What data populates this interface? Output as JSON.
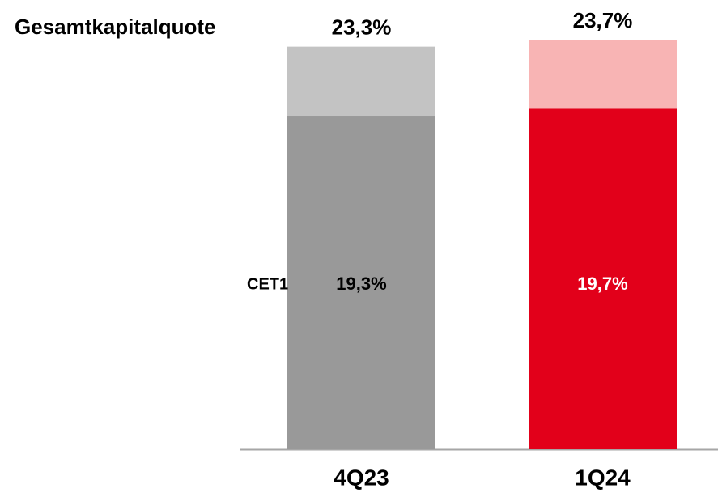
{
  "chart_data": {
    "type": "stacked_bar",
    "title": "Gesamtkapitalquote",
    "categories": [
      "4Q23",
      "1Q24"
    ],
    "series": [
      {
        "name": "CET1",
        "values": [
          19.3,
          19.7
        ],
        "value_labels": [
          "19,3%",
          "19,7%"
        ],
        "colors": [
          "#999999",
          "#e2001a"
        ],
        "label_colors": [
          "#000000",
          "#ffffff"
        ]
      }
    ],
    "totals": {
      "values": [
        23.3,
        23.7
      ],
      "value_labels": [
        "23,3%",
        "23,7%"
      ],
      "colors": [
        "#c3c3c3",
        "#f8b4b4"
      ]
    },
    "ylim": [
      0,
      26
    ]
  }
}
